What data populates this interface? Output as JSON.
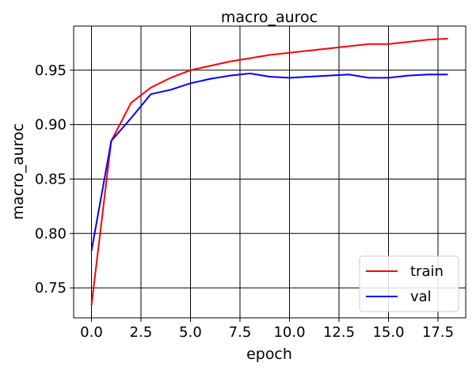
{
  "chart_data": {
    "type": "line",
    "title": "macro_auroc",
    "xlabel": "epoch",
    "ylabel": "macro_auroc",
    "xlim": [
      -0.9,
      18.9
    ],
    "ylim": [
      0.7225,
      0.9905
    ],
    "xticks": [
      0.0,
      2.5,
      5.0,
      7.5,
      10.0,
      12.5,
      15.0,
      17.5
    ],
    "xtick_labels": [
      "0.0",
      "2.5",
      "5.0",
      "7.5",
      "10.0",
      "12.5",
      "15.0",
      "17.5"
    ],
    "yticks": [
      0.75,
      0.8,
      0.85,
      0.9,
      0.95
    ],
    "ytick_labels": [
      "0.75",
      "0.80",
      "0.85",
      "0.90",
      "0.95"
    ],
    "grid": true,
    "legend": "lower-right",
    "x": [
      0,
      1,
      2,
      3,
      4,
      5,
      6,
      7,
      8,
      9,
      10,
      11,
      12,
      13,
      14,
      15,
      16,
      17,
      18
    ],
    "series": [
      {
        "name": "train",
        "color": "#ff0000",
        "values": [
          0.734,
          0.885,
          0.92,
          0.934,
          0.943,
          0.95,
          0.954,
          0.958,
          0.961,
          0.964,
          0.966,
          0.968,
          0.97,
          0.972,
          0.974,
          0.974,
          0.976,
          0.978,
          0.979
        ]
      },
      {
        "name": "val",
        "color": "#0000ff",
        "values": [
          0.784,
          0.885,
          0.906,
          0.928,
          0.932,
          0.938,
          0.942,
          0.945,
          0.947,
          0.944,
          0.943,
          0.944,
          0.945,
          0.946,
          0.943,
          0.943,
          0.945,
          0.946,
          0.946
        ]
      }
    ]
  }
}
